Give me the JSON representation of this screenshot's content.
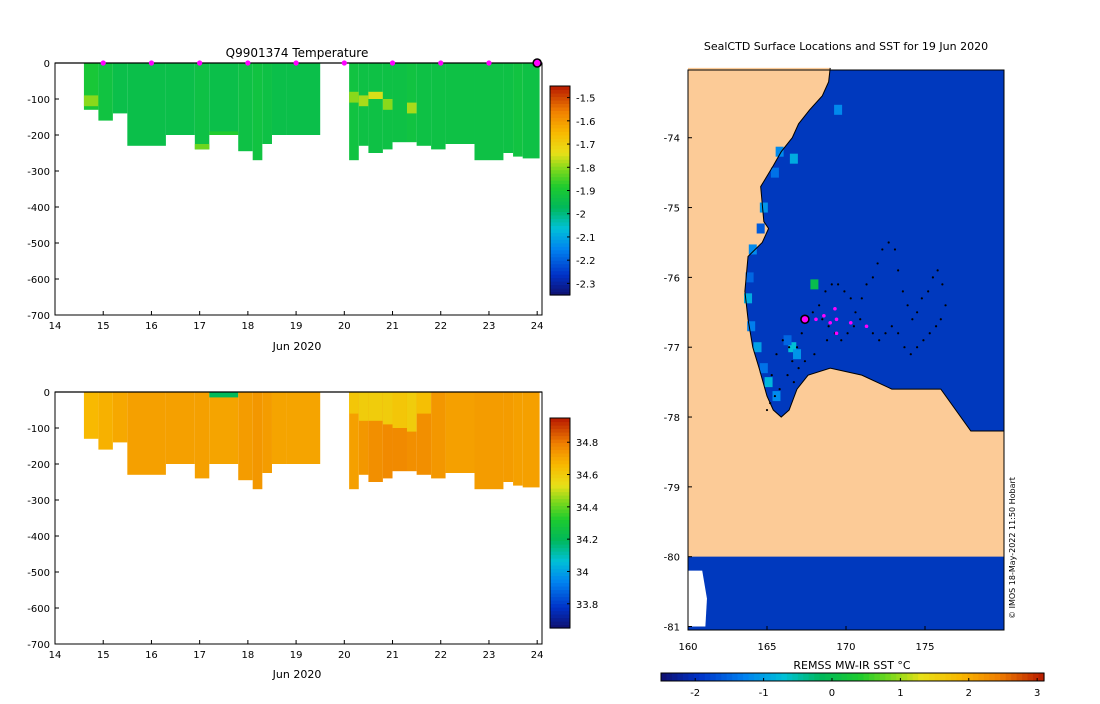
{
  "colors": {
    "land": "#fccb97",
    "ice": "#0039be",
    "outline": "#000000",
    "float_marker": "#ff00ff",
    "track": "#000000"
  },
  "chart_data": [
    {
      "type": "heatmap",
      "id": "temperature",
      "title": "Q9901374  Temperature",
      "xlabel": "Jun 2020",
      "ylabel": "",
      "x_ticks": [
        14,
        15,
        16,
        17,
        18,
        19,
        20,
        21,
        22,
        23,
        24
      ],
      "xlim": [
        14,
        24.1
      ],
      "y_ticks": [
        0,
        -100,
        -200,
        -300,
        -400,
        -500,
        -600,
        -700
      ],
      "ylim": [
        -700,
        0
      ],
      "colorbar": {
        "ticks": [
          "-1.5",
          "-1.6",
          "-1.7",
          "-1.8",
          "-1.9",
          "-2",
          "-2.1",
          "-2.2",
          "-2.3"
        ],
        "range": [
          -2.35,
          -1.45
        ]
      },
      "profile_markers_x": [
        15,
        16,
        17,
        18,
        19,
        20,
        21,
        22,
        23,
        24
      ],
      "profiles": [
        {
          "x0": 14.6,
          "x1": 14.9,
          "depth": 130,
          "value": -1.9,
          "highlights": [
            {
              "d0": 90,
              "d1": 120,
              "value": -1.8
            }
          ]
        },
        {
          "x0": 14.9,
          "x1": 15.2,
          "depth": 160,
          "value": -1.92
        },
        {
          "x0": 15.2,
          "x1": 15.5,
          "depth": 140,
          "value": -1.94
        },
        {
          "x0": 15.5,
          "x1": 16.3,
          "depth": 230,
          "value": -1.94
        },
        {
          "x0": 16.3,
          "x1": 16.9,
          "depth": 200,
          "value": -1.94
        },
        {
          "x0": 16.9,
          "x1": 17.2,
          "depth": 240,
          "value": -1.93,
          "highlights": [
            {
              "d0": 225,
              "d1": 240,
              "value": -1.82
            }
          ]
        },
        {
          "x0": 17.2,
          "x1": 17.8,
          "depth": 200,
          "value": -1.94,
          "highlights": [
            {
              "d0": 190,
              "d1": 200,
              "value": -1.88
            }
          ]
        },
        {
          "x0": 17.8,
          "x1": 18.1,
          "depth": 245,
          "value": -1.93
        },
        {
          "x0": 18.1,
          "x1": 18.3,
          "depth": 270,
          "value": -1.92
        },
        {
          "x0": 18.3,
          "x1": 18.5,
          "depth": 225,
          "value": -1.93
        },
        {
          "x0": 18.5,
          "x1": 18.8,
          "depth": 200,
          "value": -1.94
        },
        {
          "x0": 18.8,
          "x1": 19.5,
          "depth": 200,
          "value": -1.94
        },
        {
          "x0": 20.1,
          "x1": 20.3,
          "depth": 270,
          "value": -1.92,
          "highlights": [
            {
              "d0": 80,
              "d1": 110,
              "value": -1.8
            }
          ]
        },
        {
          "x0": 20.3,
          "x1": 20.5,
          "depth": 230,
          "value": -1.93,
          "highlights": [
            {
              "d0": 90,
              "d1": 120,
              "value": -1.78
            }
          ]
        },
        {
          "x0": 20.5,
          "x1": 20.8,
          "depth": 250,
          "value": -1.93,
          "highlights": [
            {
              "d0": 80,
              "d1": 100,
              "value": -1.75
            }
          ]
        },
        {
          "x0": 20.8,
          "x1": 21.0,
          "depth": 240,
          "value": -1.93,
          "highlights": [
            {
              "d0": 100,
              "d1": 130,
              "value": -1.8
            }
          ]
        },
        {
          "x0": 21.0,
          "x1": 21.3,
          "depth": 220,
          "value": -1.93
        },
        {
          "x0": 21.3,
          "x1": 21.5,
          "depth": 220,
          "value": -1.92,
          "highlights": [
            {
              "d0": 110,
              "d1": 140,
              "value": -1.78
            }
          ]
        },
        {
          "x0": 21.5,
          "x1": 21.8,
          "depth": 230,
          "value": -1.93
        },
        {
          "x0": 21.8,
          "x1": 22.1,
          "depth": 240,
          "value": -1.93
        },
        {
          "x0": 22.1,
          "x1": 22.7,
          "depth": 225,
          "value": -1.93
        },
        {
          "x0": 22.7,
          "x1": 23.3,
          "depth": 270,
          "value": -1.93
        },
        {
          "x0": 23.3,
          "x1": 23.5,
          "depth": 250,
          "value": -1.93
        },
        {
          "x0": 23.5,
          "x1": 23.7,
          "depth": 260,
          "value": -1.92
        },
        {
          "x0": 23.7,
          "x1": 24.05,
          "depth": 265,
          "value": -1.93
        }
      ]
    },
    {
      "type": "heatmap",
      "id": "salinity",
      "title": "",
      "xlabel": "Jun 2020",
      "ylabel": "",
      "x_ticks": [
        14,
        15,
        16,
        17,
        18,
        19,
        20,
        21,
        22,
        23,
        24
      ],
      "xlim": [
        14,
        24.1
      ],
      "y_ticks": [
        0,
        -100,
        -200,
        -300,
        -400,
        -500,
        -600,
        -700
      ],
      "ylim": [
        -700,
        0
      ],
      "colorbar": {
        "ticks": [
          "34.8",
          "34.6",
          "34.4",
          "34.2",
          "34",
          "33.8"
        ],
        "range": [
          33.65,
          34.95
        ]
      },
      "profiles": [
        {
          "x0": 14.6,
          "x1": 14.9,
          "depth": 130,
          "value": 34.66
        },
        {
          "x0": 14.9,
          "x1": 15.2,
          "depth": 160,
          "value": 34.68
        },
        {
          "x0": 15.2,
          "x1": 15.5,
          "depth": 140,
          "value": 34.7
        },
        {
          "x0": 15.5,
          "x1": 16.3,
          "depth": 230,
          "value": 34.72
        },
        {
          "x0": 16.3,
          "x1": 16.9,
          "depth": 200,
          "value": 34.72
        },
        {
          "x0": 16.9,
          "x1": 17.2,
          "depth": 240,
          "value": 34.72
        },
        {
          "x0": 17.2,
          "x1": 17.8,
          "depth": 200,
          "value": 34.71,
          "highlights": [
            {
              "d0": 0,
              "d1": 15,
              "value": 34.2
            }
          ]
        },
        {
          "x0": 17.8,
          "x1": 18.1,
          "depth": 245,
          "value": 34.73
        },
        {
          "x0": 18.1,
          "x1": 18.3,
          "depth": 270,
          "value": 34.74
        },
        {
          "x0": 18.3,
          "x1": 18.5,
          "depth": 225,
          "value": 34.73
        },
        {
          "x0": 18.5,
          "x1": 18.8,
          "depth": 200,
          "value": 34.71
        },
        {
          "x0": 18.8,
          "x1": 19.5,
          "depth": 200,
          "value": 34.71
        },
        {
          "x0": 20.1,
          "x1": 20.3,
          "depth": 270,
          "value": 34.72,
          "highlights": [
            {
              "d0": 0,
              "d1": 60,
              "value": 34.62
            }
          ]
        },
        {
          "x0": 20.3,
          "x1": 20.5,
          "depth": 230,
          "value": 34.74,
          "highlights": [
            {
              "d0": 0,
              "d1": 80,
              "value": 34.6
            }
          ]
        },
        {
          "x0": 20.5,
          "x1": 20.8,
          "depth": 250,
          "value": 34.76,
          "highlights": [
            {
              "d0": 0,
              "d1": 80,
              "value": 34.6
            }
          ]
        },
        {
          "x0": 20.8,
          "x1": 21.0,
          "depth": 240,
          "value": 34.77,
          "highlights": [
            {
              "d0": 0,
              "d1": 90,
              "value": 34.6
            }
          ]
        },
        {
          "x0": 21.0,
          "x1": 21.3,
          "depth": 220,
          "value": 34.77,
          "highlights": [
            {
              "d0": 0,
              "d1": 100,
              "value": 34.62
            }
          ]
        },
        {
          "x0": 21.3,
          "x1": 21.5,
          "depth": 220,
          "value": 34.76,
          "highlights": [
            {
              "d0": 0,
              "d1": 110,
              "value": 34.6
            }
          ]
        },
        {
          "x0": 21.5,
          "x1": 21.8,
          "depth": 230,
          "value": 34.76,
          "highlights": [
            {
              "d0": 0,
              "d1": 60,
              "value": 34.64
            }
          ]
        },
        {
          "x0": 21.8,
          "x1": 22.1,
          "depth": 240,
          "value": 34.74
        },
        {
          "x0": 22.1,
          "x1": 22.7,
          "depth": 225,
          "value": 34.72
        },
        {
          "x0": 22.7,
          "x1": 23.3,
          "depth": 270,
          "value": 34.73
        },
        {
          "x0": 23.3,
          "x1": 23.5,
          "depth": 250,
          "value": 34.73
        },
        {
          "x0": 23.5,
          "x1": 23.7,
          "depth": 260,
          "value": 34.72
        },
        {
          "x0": 23.7,
          "x1": 24.05,
          "depth": 265,
          "value": 34.72
        }
      ]
    },
    {
      "type": "map",
      "id": "surface-map",
      "title": "SealCTD Surface Locations and SST for 19 Jun 2020",
      "x_ticks": [
        160,
        165,
        170,
        175
      ],
      "xlim": [
        160,
        180
      ],
      "y_ticks": [
        -74,
        -75,
        -76,
        -77,
        -78,
        -79,
        -80,
        -81
      ],
      "ylim": [
        -81.05,
        -73.03
      ],
      "colorbar": {
        "label": "REMSS MW-IR SST °C",
        "ticks": [
          "-2",
          "-1",
          "0",
          "1",
          "2",
          "3"
        ],
        "range": [
          -2.5,
          3.1
        ]
      },
      "credit": "© IMOS 18-May-2022 11:50 Hobart",
      "land_boundary": [
        [
          160.0,
          -73.0
        ],
        [
          169.0,
          -73.0
        ],
        [
          168.9,
          -73.2
        ],
        [
          168.5,
          -73.4
        ],
        [
          167.7,
          -73.6
        ],
        [
          167.0,
          -73.8
        ],
        [
          166.6,
          -74.0
        ],
        [
          165.9,
          -74.2
        ],
        [
          165.4,
          -74.4
        ],
        [
          164.6,
          -74.7
        ],
        [
          164.8,
          -75.2
        ],
        [
          165.1,
          -75.3
        ],
        [
          164.7,
          -75.5
        ],
        [
          163.8,
          -75.7
        ],
        [
          163.6,
          -76.2
        ],
        [
          163.8,
          -76.6
        ],
        [
          164.1,
          -77.0
        ],
        [
          164.5,
          -77.3
        ],
        [
          165.0,
          -77.7
        ],
        [
          165.4,
          -77.9
        ],
        [
          165.9,
          -78.0
        ],
        [
          166.4,
          -77.9
        ],
        [
          166.9,
          -77.6
        ],
        [
          167.6,
          -77.4
        ],
        [
          169.0,
          -77.3
        ],
        [
          171.0,
          -77.4
        ],
        [
          172.9,
          -77.6
        ],
        [
          174.6,
          -77.6
        ],
        [
          176.0,
          -77.6
        ],
        [
          177.9,
          -78.2
        ],
        [
          180.0,
          -78.2
        ],
        [
          180.0,
          -80.0
        ],
        [
          160.0,
          -80.0
        ]
      ],
      "coastal_sst_cells": [
        [
          165.8,
          -74.2,
          -1.2
        ],
        [
          165.5,
          -74.5,
          -1.4
        ],
        [
          164.8,
          -75.0,
          -1.1
        ],
        [
          164.6,
          -75.3,
          -1.6
        ],
        [
          164.1,
          -75.6,
          -1.2
        ],
        [
          163.9,
          -76.0,
          -1.5
        ],
        [
          163.8,
          -76.3,
          -0.9
        ],
        [
          164.0,
          -76.7,
          -1.3
        ],
        [
          164.4,
          -77.0,
          -1.0
        ],
        [
          164.8,
          -77.3,
          -1.4
        ],
        [
          165.1,
          -77.5,
          -0.8
        ],
        [
          165.6,
          -77.7,
          -1.2
        ],
        [
          166.6,
          -77.0,
          -0.7
        ],
        [
          166.9,
          -77.1,
          -1.1
        ],
        [
          166.3,
          -76.9,
          -1.5
        ],
        [
          168.0,
          -76.1,
          0.0
        ],
        [
          166.7,
          -74.3,
          -0.9
        ],
        [
          169.5,
          -73.6,
          -1.2
        ]
      ],
      "south_land": [
        [
          160.0,
          -80.2
        ],
        [
          160.9,
          -80.2
        ],
        [
          161.2,
          -80.6
        ],
        [
          161.1,
          -81.0
        ],
        [
          160.0,
          -81.0
        ]
      ],
      "track_points": [
        [
          165.0,
          -77.9
        ],
        [
          165.2,
          -77.8
        ],
        [
          165.5,
          -77.7
        ],
        [
          165.8,
          -77.6
        ],
        [
          166.3,
          -77.4
        ],
        [
          166.6,
          -77.2
        ],
        [
          166.9,
          -77.0
        ],
        [
          167.2,
          -76.8
        ],
        [
          167.5,
          -76.6
        ],
        [
          167.9,
          -76.5
        ],
        [
          168.3,
          -76.4
        ],
        [
          168.7,
          -76.2
        ],
        [
          169.1,
          -76.1
        ],
        [
          169.5,
          -76.1
        ],
        [
          169.9,
          -76.2
        ],
        [
          170.3,
          -76.3
        ],
        [
          170.6,
          -76.5
        ],
        [
          171.0,
          -76.3
        ],
        [
          171.3,
          -76.1
        ],
        [
          171.7,
          -76.0
        ],
        [
          172.0,
          -75.8
        ],
        [
          172.3,
          -75.6
        ],
        [
          172.7,
          -75.5
        ],
        [
          173.1,
          -75.6
        ],
        [
          173.3,
          -75.9
        ],
        [
          173.6,
          -76.2
        ],
        [
          173.9,
          -76.4
        ],
        [
          174.2,
          -76.6
        ],
        [
          174.5,
          -76.5
        ],
        [
          174.8,
          -76.3
        ],
        [
          175.2,
          -76.2
        ],
        [
          175.5,
          -76.0
        ],
        [
          175.8,
          -75.9
        ],
        [
          176.1,
          -76.1
        ],
        [
          176.3,
          -76.4
        ],
        [
          176.0,
          -76.6
        ],
        [
          175.7,
          -76.7
        ],
        [
          175.3,
          -76.8
        ],
        [
          174.9,
          -76.9
        ],
        [
          174.5,
          -77.0
        ],
        [
          174.1,
          -77.1
        ],
        [
          173.7,
          -77.0
        ],
        [
          173.3,
          -76.8
        ],
        [
          172.9,
          -76.7
        ],
        [
          172.5,
          -76.8
        ],
        [
          172.1,
          -76.9
        ],
        [
          171.7,
          -76.8
        ],
        [
          171.3,
          -76.7
        ],
        [
          170.9,
          -76.6
        ],
        [
          170.5,
          -76.7
        ],
        [
          170.1,
          -76.8
        ],
        [
          169.7,
          -76.9
        ],
        [
          169.3,
          -76.8
        ],
        [
          168.9,
          -76.7
        ],
        [
          168.5,
          -76.6
        ],
        [
          165.3,
          -77.4
        ],
        [
          165.6,
          -77.1
        ],
        [
          166.0,
          -76.9
        ],
        [
          166.4,
          -77.0
        ],
        [
          166.7,
          -77.5
        ],
        [
          167.0,
          -77.3
        ],
        [
          167.4,
          -77.2
        ],
        [
          168.0,
          -77.1
        ],
        [
          168.8,
          -76.9
        ]
      ],
      "magenta_points": [
        [
          168.1,
          -76.6
        ],
        [
          168.6,
          -76.55
        ],
        [
          169.3,
          -76.45
        ],
        [
          169.4,
          -76.6
        ],
        [
          169.4,
          -76.8
        ],
        [
          170.3,
          -76.65
        ],
        [
          171.3,
          -76.7
        ],
        [
          169.0,
          -76.65
        ]
      ],
      "current_position": [
        167.4,
        -76.6
      ]
    }
  ]
}
